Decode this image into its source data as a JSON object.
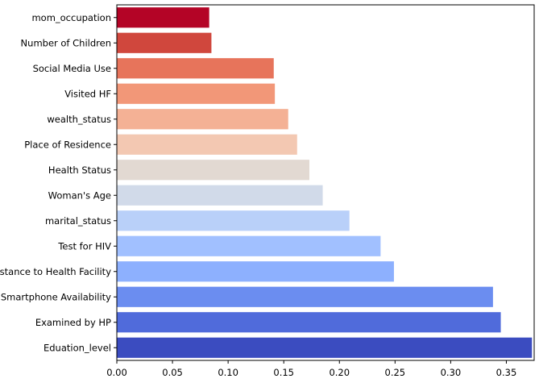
{
  "chart_data": {
    "type": "bar",
    "orientation": "horizontal",
    "title": "",
    "xlabel": "",
    "ylabel": "",
    "xlim": [
      0,
      0.375
    ],
    "xticks": [
      0.0,
      0.05,
      0.1,
      0.15,
      0.2,
      0.25,
      0.3,
      0.35
    ],
    "xtick_labels": [
      "0.00",
      "0.05",
      "0.10",
      "0.15",
      "0.20",
      "0.25",
      "0.30",
      "0.35"
    ],
    "grid": false,
    "legend": "none",
    "colormap": "coolwarm",
    "categories": [
      "mom_occupation",
      "Number of Children",
      "Social Media Use",
      "Visited HF",
      "wealth_status",
      "Place of Residence",
      "Health Status",
      "Woman's Age",
      "marital_status",
      "Test for HIV",
      "Distance to Health Facility",
      "Smartphone Availability",
      "Examined by HP",
      "Eduation_level"
    ],
    "values": [
      0.083,
      0.085,
      0.141,
      0.142,
      0.154,
      0.162,
      0.173,
      0.185,
      0.209,
      0.237,
      0.249,
      0.338,
      0.345,
      0.373
    ],
    "colors": [
      "#b40426",
      "#d0473d",
      "#e7745b",
      "#f29778",
      "#f4b195",
      "#f3c8b2",
      "#e2d9d2",
      "#d1dae9",
      "#b9d0f9",
      "#a1c0ff",
      "#8db0fe",
      "#6b8df0",
      "#506bdb",
      "#3b4cc0"
    ]
  }
}
